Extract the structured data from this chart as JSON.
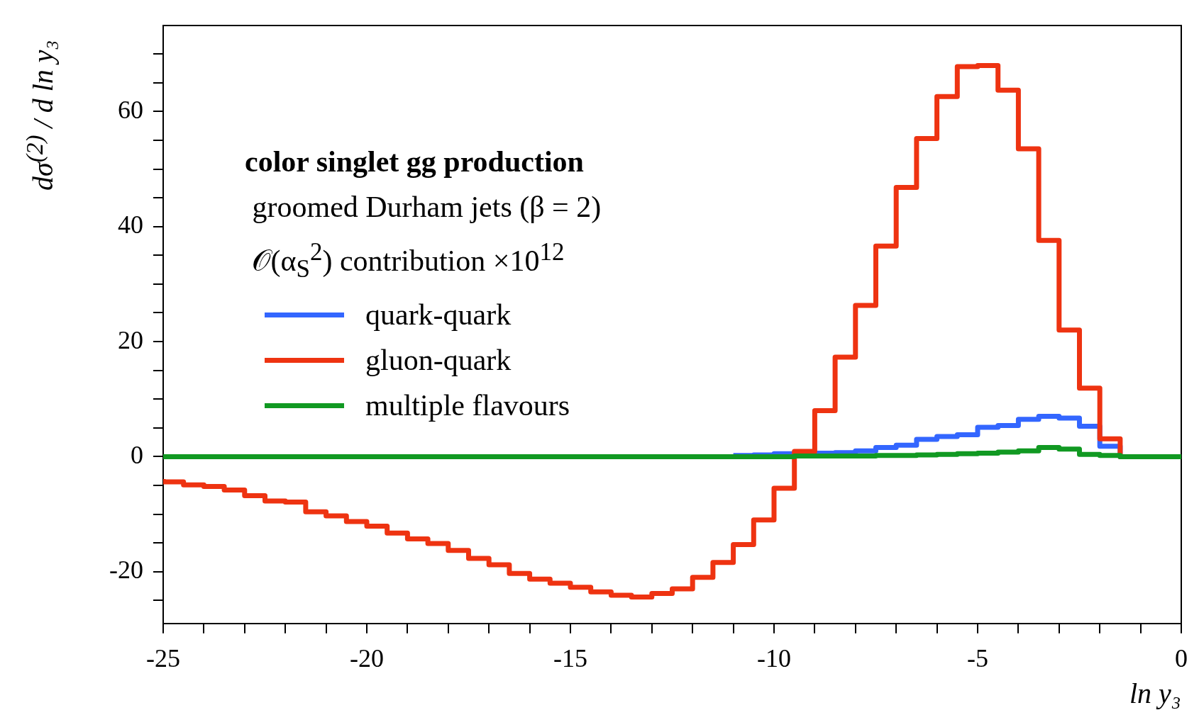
{
  "chart_data": {
    "type": "step",
    "legend_title": "color singlet gg production",
    "annotations": [
      "groomed Durham jets (β = 2)",
      "𝒪(α$_{S}$$^{2}$) contribution ×10$^{12}$"
    ],
    "xlabel": "ln y₃",
    "ylabel": "dσ$^{(2)}$ / d ln y₃",
    "x": [
      -25,
      -24.5,
      -24,
      -23.5,
      -23,
      -22.5,
      -22,
      -21.5,
      -21,
      -20.5,
      -20,
      -19.5,
      -19,
      -18.5,
      -18,
      -17.5,
      -17,
      -16.5,
      -16,
      -15.5,
      -15,
      -14.5,
      -14,
      -13.5,
      -13,
      -12.5,
      -12,
      -11.5,
      -11,
      -10.5,
      -10,
      -9.5,
      -9,
      -8.5,
      -8,
      -7.5,
      -7,
      -6.5,
      -6,
      -5.5,
      -5,
      -4.5,
      -4,
      -3.5,
      -3,
      -2.5,
      -2,
      -1.5,
      -1,
      -0.5,
      0
    ],
    "series": [
      {
        "name": "quark-quark",
        "color": "#3366ff",
        "values": [
          null,
          null,
          null,
          null,
          null,
          null,
          null,
          null,
          null,
          null,
          null,
          null,
          null,
          null,
          null,
          null,
          null,
          null,
          null,
          null,
          null,
          null,
          null,
          null,
          null,
          null,
          null,
          null,
          0.2,
          0.2,
          0.3,
          0.5,
          0.6,
          0.6,
          0.7,
          1.0,
          1.6,
          2.0,
          3.0,
          3.5,
          3.8,
          5.1,
          5.4,
          6.5,
          7.0,
          6.7,
          5.3,
          1.8,
          0,
          null,
          null
        ]
      },
      {
        "name": "gluon-quark",
        "color": "#ee3311",
        "values": [
          -3.9,
          -4.4,
          -4.9,
          -5.2,
          -5.8,
          -6.8,
          -7.7,
          -7.9,
          -9.6,
          -10.3,
          -11.3,
          -12.1,
          -13.3,
          -14.3,
          -15.1,
          -16.3,
          -17.7,
          -18.8,
          -20.3,
          -21.3,
          -22.0,
          -22.7,
          -23.5,
          -24.1,
          -24.4,
          -23.8,
          -23.0,
          -21.0,
          -18.4,
          -15.3,
          -11.0,
          -5.5,
          0.9,
          8.0,
          17.3,
          26.3,
          36.6,
          46.8,
          55.3,
          62.6,
          67.8,
          68.0,
          63.7,
          53.5,
          37.6,
          22.0,
          11.9,
          3.1,
          0,
          null,
          null
        ]
      },
      {
        "name": "multiple flavours",
        "color": "#119922",
        "values": [
          0,
          0,
          0,
          0,
          0,
          0,
          0,
          0,
          0,
          0,
          0,
          0,
          0,
          0,
          0,
          0,
          0,
          0,
          0,
          0,
          0,
          0,
          0,
          0,
          0,
          0,
          0,
          0,
          0,
          0,
          0,
          0,
          0.1,
          0.1,
          0.1,
          0.1,
          0.2,
          0.2,
          0.3,
          0.4,
          0.5,
          0.6,
          0.8,
          1.0,
          1.6,
          1.3,
          0.4,
          0.2,
          0,
          0,
          0
        ]
      }
    ],
    "xlim": [
      -25,
      0
    ],
    "xticks": [
      -25,
      {
        "value": -24,
        "label": null
      },
      {
        "value": -23,
        "label": null
      },
      {
        "value": -22,
        "label": null
      },
      {
        "value": -21,
        "label": null
      },
      -20,
      {
        "value": -19,
        "label": null
      },
      {
        "value": -18,
        "label": null
      },
      {
        "value": -17,
        "label": null
      },
      {
        "value": -16,
        "label": null
      },
      -15,
      {
        "value": -14,
        "label": null
      },
      {
        "value": -13,
        "label": null
      },
      {
        "value": -12,
        "label": null
      },
      {
        "value": -11,
        "label": null
      },
      -10,
      {
        "value": -9,
        "label": null
      },
      {
        "value": -8,
        "label": null
      },
      {
        "value": -7,
        "label": null
      },
      {
        "value": -6,
        "label": null
      },
      -5,
      {
        "value": -4,
        "label": null
      },
      {
        "value": -3,
        "label": null
      },
      {
        "value": -2,
        "label": null
      },
      {
        "value": -1,
        "label": null
      },
      0
    ],
    "ylim": [
      -29,
      75
    ],
    "yticks": [
      {
        "value": -25,
        "label": null
      },
      -20,
      {
        "value": -15,
        "label": null
      },
      {
        "value": -10,
        "label": null
      },
      {
        "value": -5,
        "label": null
      },
      0,
      {
        "value": 5,
        "label": null
      },
      {
        "value": 10,
        "label": null
      },
      {
        "value": 15,
        "label": null
      },
      20,
      {
        "value": 25,
        "label": null
      },
      {
        "value": 30,
        "label": null
      },
      {
        "value": 35,
        "label": null
      },
      40,
      {
        "value": 45,
        "label": null
      },
      {
        "value": 50,
        "label": null
      },
      {
        "value": 55,
        "label": null
      },
      60,
      {
        "value": 65,
        "label": null
      },
      {
        "value": 70,
        "label": null
      }
    ],
    "legend": "left",
    "grid": false
  }
}
